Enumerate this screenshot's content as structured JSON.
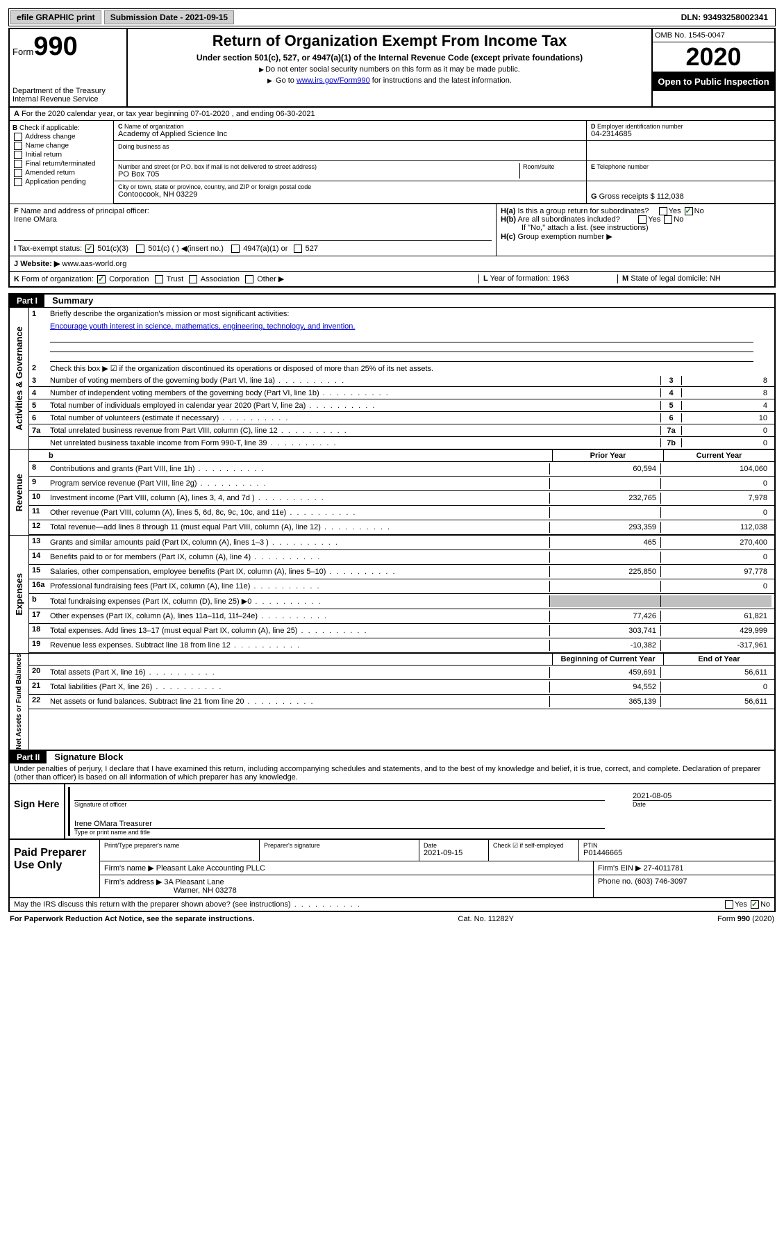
{
  "topbar": {
    "efile_label": "efile GRAPHIC print",
    "submission_label": "Submission Date - 2021-09-15",
    "dln": "DLN: 93493258002341"
  },
  "header": {
    "form_word": "Form",
    "form_num": "990",
    "dept": "Department of the Treasury\nInternal Revenue Service",
    "title": "Return of Organization Exempt From Income Tax",
    "subtitle": "Under section 501(c), 527, or 4947(a)(1) of the Internal Revenue Code (except private foundations)",
    "note1": "Do not enter social security numbers on this form as it may be made public.",
    "note2_pre": "Go to ",
    "note2_link": "www.irs.gov/Form990",
    "note2_post": " for instructions and the latest information.",
    "omb": "OMB No. 1545-0047",
    "year": "2020",
    "inspection": "Open to Public Inspection"
  },
  "row_a": "For the 2020 calendar year, or tax year beginning 07-01-2020    , and ending 06-30-2021",
  "box_b": {
    "header": "Check if applicable:",
    "items": [
      "Address change",
      "Name change",
      "Initial return",
      "Final return/terminated",
      "Amended return",
      "Application pending"
    ]
  },
  "box_c": {
    "name_label": "Name of organization",
    "name": "Academy of Applied Science Inc",
    "dba_label": "Doing business as",
    "street_label": "Number and street (or P.O. box if mail is not delivered to street address)",
    "room_label": "Room/suite",
    "street": "PO Box 705",
    "city_label": "City or town, state or province, country, and ZIP or foreign postal code",
    "city": "Contoocook, NH  03229"
  },
  "box_d": {
    "ein_label": "Employer identification number",
    "ein": "04-2314685",
    "phone_label": "Telephone number",
    "gross_label": "Gross receipts $ 112,038"
  },
  "box_f": {
    "label": "Name and address of principal officer:",
    "name": "Irene OMara"
  },
  "box_h": {
    "a": "Is this a group return for subordinates?",
    "b": "Are all subordinates included?",
    "b_note": "If \"No,\" attach a list. (see instructions)",
    "c": "Group exemption number ▶",
    "yes": "Yes",
    "no": "No"
  },
  "row_i": {
    "label": "Tax-exempt status:",
    "opts": [
      "501(c)(3)",
      "501(c) (   ) ◀(insert no.)",
      "4947(a)(1) or",
      "527"
    ]
  },
  "row_j": {
    "label": "Website: ▶",
    "value": "www.aas-world.org"
  },
  "row_k": {
    "label": "Form of organization:",
    "opts": [
      "Corporation",
      "Trust",
      "Association",
      "Other ▶"
    ],
    "l_label": "Year of formation: 1963",
    "m_label": "State of legal domicile: NH"
  },
  "part1": {
    "header": "Part I",
    "title": "Summary",
    "side_labels": [
      "Activities & Governance",
      "Revenue",
      "Expenses",
      "Net Assets or Fund Balances"
    ],
    "line1_label": "Briefly describe the organization's mission or most significant activities:",
    "line1_text": "Encourage youth interest in science, mathematics, engineering, technology, and invention.",
    "line2": "Check this box ▶ ☑ if the organization discontinued its operations or disposed of more than 25% of its net assets.",
    "governance_lines": [
      {
        "n": "3",
        "t": "Number of voting members of the governing body (Part VI, line 1a)",
        "box": "3",
        "v": "8"
      },
      {
        "n": "4",
        "t": "Number of independent voting members of the governing body (Part VI, line 1b)",
        "box": "4",
        "v": "8"
      },
      {
        "n": "5",
        "t": "Total number of individuals employed in calendar year 2020 (Part V, line 2a)",
        "box": "5",
        "v": "4"
      },
      {
        "n": "6",
        "t": "Total number of volunteers (estimate if necessary)",
        "box": "6",
        "v": "10"
      },
      {
        "n": "7a",
        "t": "Total unrelated business revenue from Part VIII, column (C), line 12",
        "box": "7a",
        "v": "0"
      },
      {
        "n": "",
        "t": "Net unrelated business taxable income from Form 990-T, line 39",
        "box": "7b",
        "v": "0"
      }
    ],
    "col_hdr_prior": "Prior Year",
    "col_hdr_current": "Current Year",
    "revenue_lines": [
      {
        "n": "8",
        "t": "Contributions and grants (Part VIII, line 1h)",
        "p": "60,594",
        "c": "104,060"
      },
      {
        "n": "9",
        "t": "Program service revenue (Part VIII, line 2g)",
        "p": "",
        "c": "0"
      },
      {
        "n": "10",
        "t": "Investment income (Part VIII, column (A), lines 3, 4, and 7d )",
        "p": "232,765",
        "c": "7,978"
      },
      {
        "n": "11",
        "t": "Other revenue (Part VIII, column (A), lines 5, 6d, 8c, 9c, 10c, and 11e)",
        "p": "",
        "c": "0"
      },
      {
        "n": "12",
        "t": "Total revenue—add lines 8 through 11 (must equal Part VIII, column (A), line 12)",
        "p": "293,359",
        "c": "112,038"
      }
    ],
    "expense_lines": [
      {
        "n": "13",
        "t": "Grants and similar amounts paid (Part IX, column (A), lines 1–3 )",
        "p": "465",
        "c": "270,400"
      },
      {
        "n": "14",
        "t": "Benefits paid to or for members (Part IX, column (A), line 4)",
        "p": "",
        "c": "0"
      },
      {
        "n": "15",
        "t": "Salaries, other compensation, employee benefits (Part IX, column (A), lines 5–10)",
        "p": "225,850",
        "c": "97,778"
      },
      {
        "n": "16a",
        "t": "Professional fundraising fees (Part IX, column (A), line 11e)",
        "p": "",
        "c": "0"
      },
      {
        "n": "b",
        "t": "Total fundraising expenses (Part IX, column (D), line 25) ▶0",
        "p": "gray",
        "c": "gray"
      },
      {
        "n": "17",
        "t": "Other expenses (Part IX, column (A), lines 11a–11d, 11f–24e)",
        "p": "77,426",
        "c": "61,821"
      },
      {
        "n": "18",
        "t": "Total expenses. Add lines 13–17 (must equal Part IX, column (A), line 25)",
        "p": "303,741",
        "c": "429,999"
      },
      {
        "n": "19",
        "t": "Revenue less expenses. Subtract line 18 from line 12",
        "p": "-10,382",
        "c": "-317,961"
      }
    ],
    "col_hdr_begin": "Beginning of Current Year",
    "col_hdr_end": "End of Year",
    "asset_lines": [
      {
        "n": "20",
        "t": "Total assets (Part X, line 16)",
        "p": "459,691",
        "c": "56,611"
      },
      {
        "n": "21",
        "t": "Total liabilities (Part X, line 26)",
        "p": "94,552",
        "c": "0"
      },
      {
        "n": "22",
        "t": "Net assets or fund balances. Subtract line 21 from line 20",
        "p": "365,139",
        "c": "56,611"
      }
    ]
  },
  "part2": {
    "header": "Part II",
    "title": "Signature Block",
    "penalty": "Under penalties of perjury, I declare that I have examined this return, including accompanying schedules and statements, and to the best of my knowledge and belief, it is true, correct, and complete. Declaration of preparer (other than officer) is based on all information of which preparer has any knowledge."
  },
  "sign": {
    "label": "Sign Here",
    "sig_officer": "Signature of officer",
    "date": "2021-08-05",
    "date_label": "Date",
    "name": "Irene OMara  Treasurer",
    "name_label": "Type or print name and title"
  },
  "preparer": {
    "label": "Paid Preparer Use Only",
    "print_name_label": "Print/Type preparer's name",
    "sig_label": "Preparer's signature",
    "date_label": "Date",
    "date": "2021-09-15",
    "check_label": "Check ☑ if self-employed",
    "ptin_label": "PTIN",
    "ptin": "P01446665",
    "firm_name_label": "Firm's name    ▶",
    "firm_name": "Pleasant Lake Accounting PLLC",
    "firm_ein_label": "Firm's EIN ▶",
    "firm_ein": "27-4011781",
    "firm_addr_label": "Firm's address ▶",
    "firm_addr1": "3A Pleasant Lane",
    "firm_addr2": "Warner, NH  03278",
    "phone_label": "Phone no. (603) 746-3097"
  },
  "discuss": "May the IRS discuss this return with the preparer shown above? (see instructions)",
  "footer": {
    "left": "For Paperwork Reduction Act Notice, see the separate instructions.",
    "mid": "Cat. No. 11282Y",
    "right": "Form 990 (2020)"
  }
}
